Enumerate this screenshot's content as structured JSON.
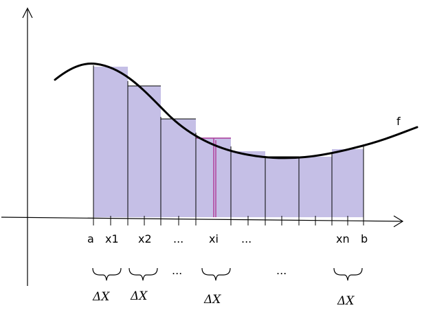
{
  "curve_label": "f",
  "x_labels": {
    "a": "a",
    "x1": "x1",
    "x2": "x2",
    "dots1": "...",
    "xi": "xi",
    "dots2": "...",
    "xn": "xn",
    "b": "b"
  },
  "brace_dots": [
    "...",
    "..."
  ],
  "delta_labels": [
    "ΔX",
    "ΔX",
    "ΔX",
    "ΔX"
  ],
  "colors": {
    "rect_fill": "#c5bfe6",
    "curve": "#000000",
    "highlight": "#b0409c"
  }
}
